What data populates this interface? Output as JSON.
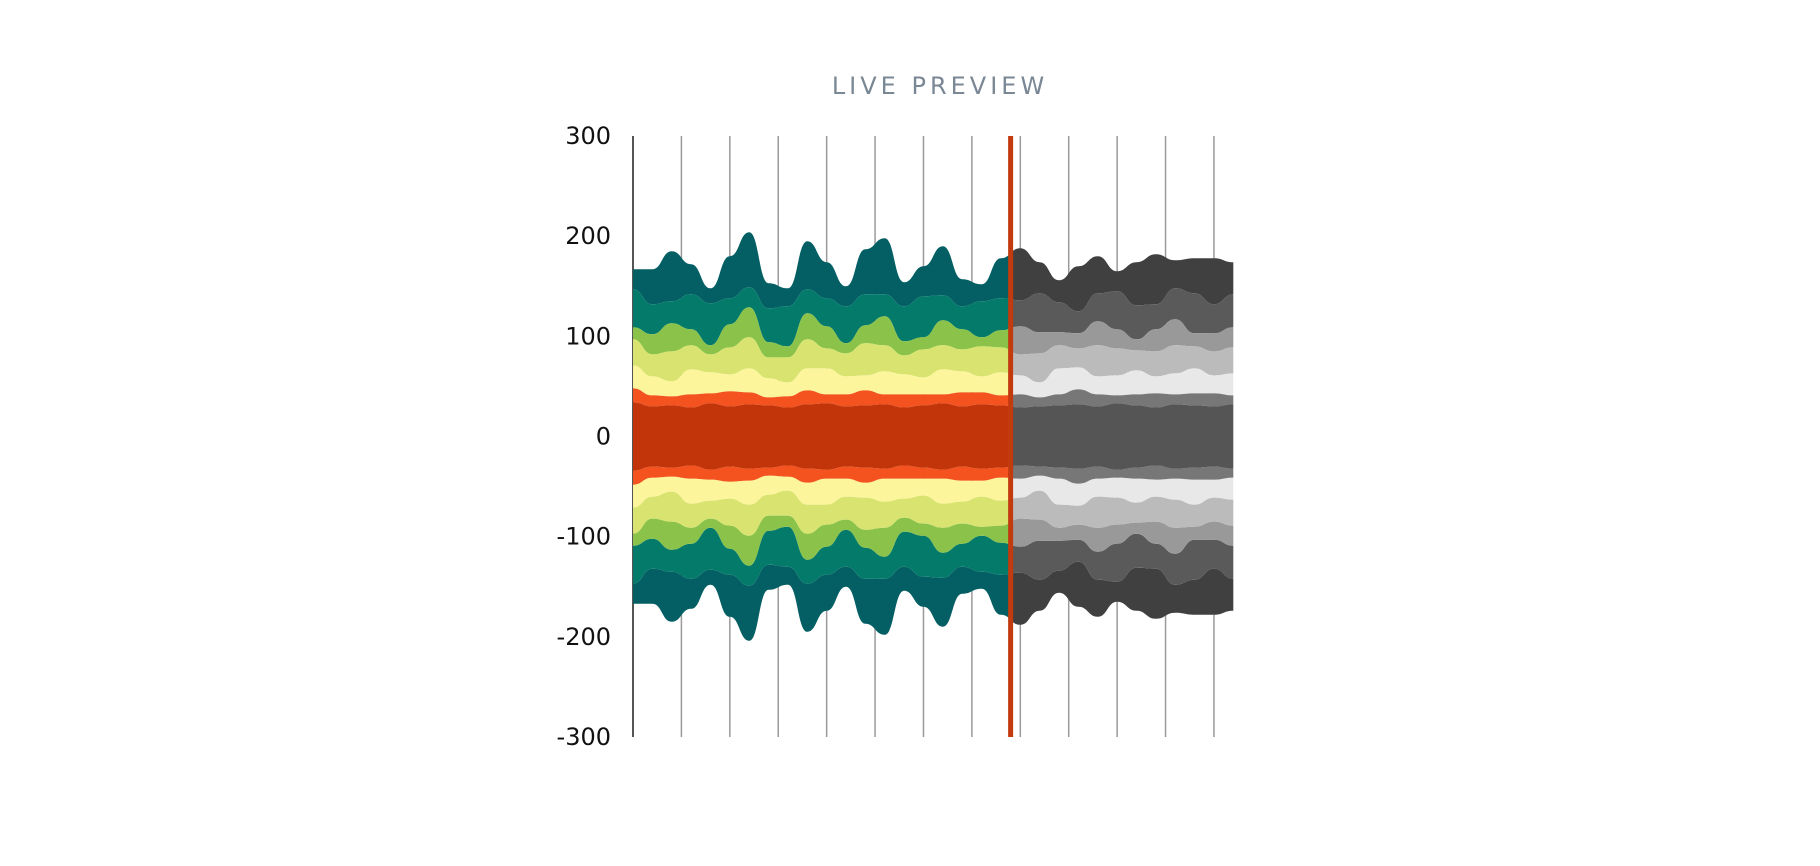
{
  "title": "LIVE PREVIEW",
  "colors": {
    "title": "#7a8794",
    "gridline": "#9a9a9a",
    "axis": "#555555",
    "cursor": "#c23b0f"
  },
  "chart_data": {
    "type": "area",
    "subtype": "streamgraph (symmetric, centered at 0)",
    "title": "LIVE PREVIEW",
    "xlabel": "",
    "ylabel": "",
    "ylim": [
      -300,
      300
    ],
    "yticks": [
      300,
      200,
      100,
      0,
      -100,
      -200,
      -300
    ],
    "x_range": [
      0,
      12.6
    ],
    "x_gridlines": [
      0,
      1,
      2,
      3,
      4,
      5,
      6,
      7,
      8,
      9,
      10,
      11,
      12
    ],
    "cursor_x": 7.8,
    "legend": "none",
    "grid": "vertical lines only",
    "note_colors": "layers right of the cursor are drawn in grayscale",
    "x": [
      0,
      0.4,
      0.8,
      1.2,
      1.6,
      2.0,
      2.4,
      2.8,
      3.2,
      3.6,
      4.0,
      4.4,
      4.8,
      5.2,
      5.6,
      6.0,
      6.4,
      6.8,
      7.2,
      7.6,
      8.0,
      8.4,
      8.8,
      9.2,
      9.6,
      10.0,
      10.4,
      10.8,
      11.2,
      11.6,
      12.0,
      12.4
    ],
    "series": [
      {
        "color": "#c23409",
        "gray": "#555555",
        "values": [
          68,
          60,
          62,
          58,
          66,
          60,
          64,
          62,
          58,
          64,
          66,
          60,
          62,
          64,
          58,
          62,
          66,
          60,
          64,
          62,
          58,
          60,
          62,
          64,
          60,
          66,
          62,
          58,
          64,
          62,
          60,
          64
        ]
      },
      {
        "color": "#f4521e",
        "gray": "#777777",
        "values": [
          28,
          22,
          18,
          26,
          20,
          30,
          24,
          16,
          22,
          28,
          18,
          24,
          30,
          20,
          26,
          22,
          18,
          28,
          24,
          20,
          26,
          18,
          22,
          30,
          24,
          16,
          22,
          28,
          20,
          24,
          26,
          18
        ]
      },
      {
        "color": "#fdf59b",
        "gray": "#e8e8e8",
        "values": [
          46,
          38,
          30,
          50,
          42,
          34,
          48,
          38,
          28,
          44,
          52,
          36,
          30,
          46,
          40,
          34,
          50,
          42,
          32,
          46,
          38,
          30,
          52,
          44,
          36,
          40,
          48,
          34,
          42,
          50,
          36,
          44
        ]
      },
      {
        "color": "#d8e46f",
        "gray": "#bbbbbb",
        "values": [
          52,
          44,
          60,
          48,
          36,
          54,
          62,
          42,
          50,
          58,
          40,
          46,
          64,
          52,
          38,
          56,
          48,
          44,
          60,
          50,
          42,
          58,
          46,
          38,
          62,
          54,
          40,
          50,
          56,
          44,
          48,
          52
        ]
      },
      {
        "color": "#8bc34a",
        "gray": "#999999",
        "values": [
          24,
          40,
          56,
          32,
          18,
          46,
          60,
          30,
          22,
          52,
          44,
          20,
          36,
          58,
          28,
          24,
          50,
          40,
          18,
          34,
          56,
          42,
          26,
          30,
          48,
          38,
          22,
          44,
          52,
          26,
          36,
          40
        ]
      },
      {
        "color": "#047b6a",
        "gray": "#5a5a5a",
        "values": [
          76,
          60,
          44,
          70,
          84,
          52,
          40,
          68,
          80,
          48,
          56,
          74,
          62,
          44,
          70,
          82,
          50,
          46,
          72,
          64,
          52,
          78,
          60,
          44,
          56,
          76,
          68,
          50,
          62,
          80,
          58,
          66
        ]
      },
      {
        "color": "#035f63",
        "gray": "#404040",
        "values": [
          40,
          70,
          100,
          60,
          30,
          84,
          110,
          50,
          36,
          96,
          72,
          40,
          90,
          112,
          48,
          60,
          98,
          54,
          34,
          80,
          104,
          62,
          44,
          90,
          74,
          40,
          86,
          100,
          56,
          70,
          92,
          64
        ]
      }
    ]
  }
}
